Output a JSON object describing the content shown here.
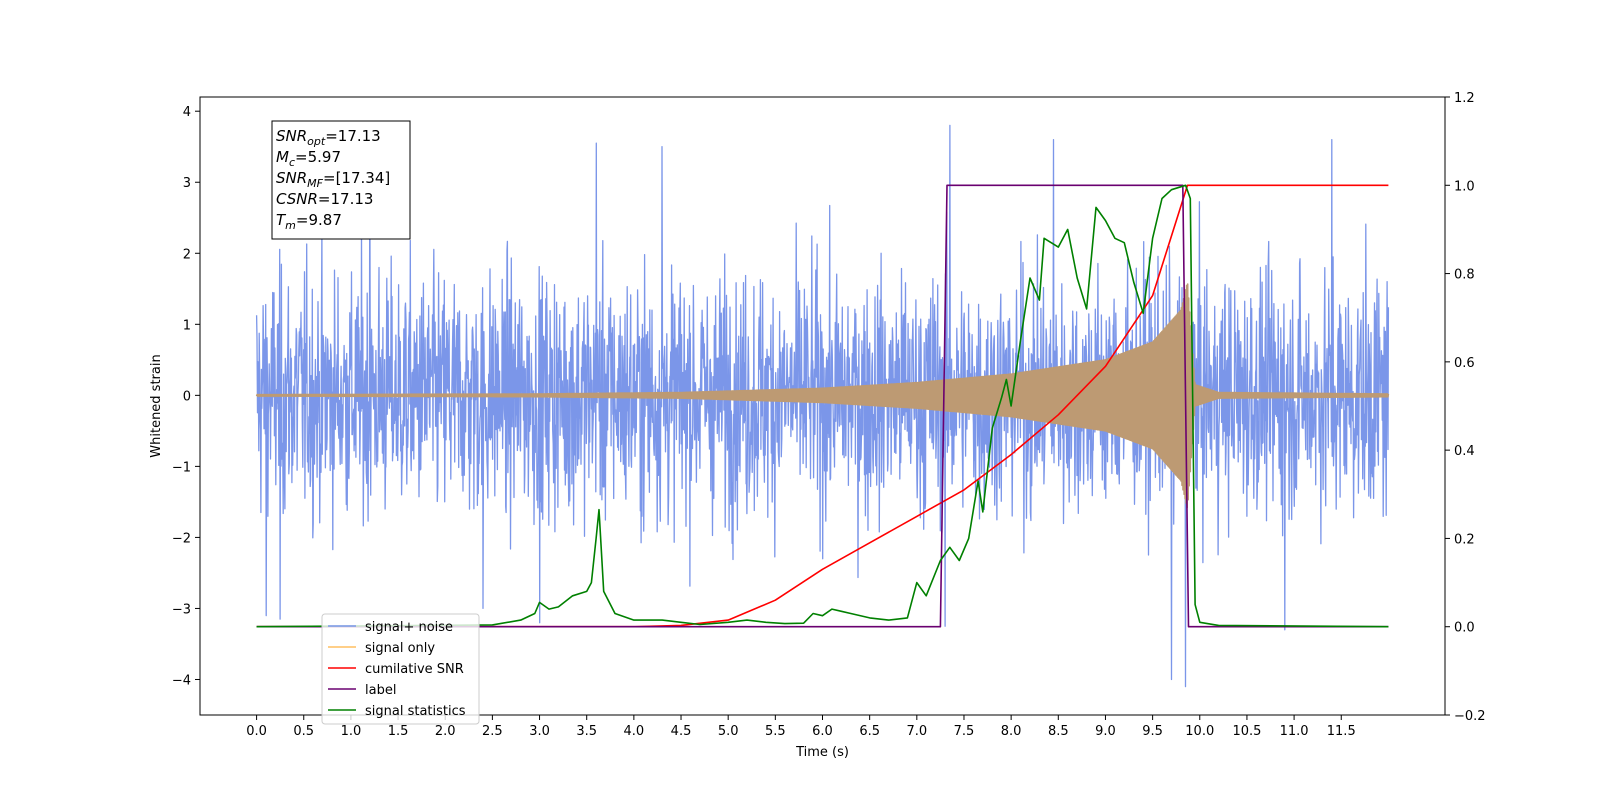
{
  "chart_data": {
    "type": "line",
    "xlabel": "Time (s)",
    "ylabel": "Whitened strain",
    "x_ticks": [
      "0.0",
      "0.5",
      "1.0",
      "1.5",
      "2.0",
      "2.5",
      "3.0",
      "3.5",
      "4.0",
      "4.5",
      "5.0",
      "5.5",
      "6.0",
      "6.5",
      "7.0",
      "7.5",
      "8.0",
      "8.5",
      "9.0",
      "9.5",
      "10.0",
      "10.5",
      "11.0",
      "11.5"
    ],
    "xlim": [
      -0.6,
      12.6
    ],
    "ylim_left": [
      -4.5,
      4.2
    ],
    "ylim_right": [
      -0.2,
      1.2
    ],
    "y_ticks_left": [
      "−4",
      "−3",
      "−2",
      "−1",
      "0",
      "1",
      "2",
      "3",
      "4"
    ],
    "y_ticks_right": [
      "−0.2",
      "0.0",
      "0.2",
      "0.4",
      "0.6",
      "0.8",
      "1.0",
      "1.2"
    ],
    "grid": false,
    "legend_position": "lower-left",
    "annotation": {
      "lines": [
        {
          "sym": "SNR",
          "sub": "opt",
          "value": "=17.13"
        },
        {
          "sym": "M",
          "sub": "c",
          "value": "=5.97"
        },
        {
          "sym": "SNR",
          "sub": "MF",
          "value": "=[17.34]"
        },
        {
          "sym": "CSNR",
          "sub": "",
          "value": "=17.13"
        },
        {
          "sym": "T",
          "sub": "m",
          "value": "=9.87"
        }
      ]
    },
    "series": [
      {
        "name": "signal+ noise",
        "color": "#7b96e9",
        "axis": "left",
        "x_range": [
          0.0,
          12.0
        ],
        "noise_std": 0.85,
        "spikes": [
          [
            0.1,
            -3.1
          ],
          [
            0.25,
            -3.15
          ],
          [
            1.2,
            3.5
          ],
          [
            2.4,
            -3.0
          ],
          [
            3.0,
            -3.2
          ],
          [
            3.6,
            3.55
          ],
          [
            4.3,
            3.5
          ],
          [
            7.3,
            -3.25
          ],
          [
            7.35,
            3.8
          ],
          [
            8.45,
            3.6
          ],
          [
            9.7,
            -4.0
          ],
          [
            9.85,
            -4.1
          ],
          [
            10.9,
            -3.3
          ],
          [
            10.9,
            3.7
          ],
          [
            11.4,
            3.6
          ]
        ]
      },
      {
        "name": "signal only",
        "color": "#bd9a73",
        "legend_color": "#ffbf60",
        "axis": "left",
        "x_range": [
          0.0,
          12.0
        ],
        "envelope": [
          [
            0,
            0.01
          ],
          [
            3.0,
            0.02
          ],
          [
            4.5,
            0.04
          ],
          [
            6.0,
            0.1
          ],
          [
            7.0,
            0.18
          ],
          [
            8.0,
            0.3
          ],
          [
            9.0,
            0.5
          ],
          [
            9.5,
            0.75
          ],
          [
            9.8,
            1.2
          ],
          [
            9.87,
            1.6
          ],
          [
            9.95,
            0.15
          ],
          [
            10.2,
            0.04
          ],
          [
            12.0,
            0.02
          ]
        ]
      },
      {
        "name": "cumilative SNR",
        "color": "#ff0000",
        "axis": "right",
        "points": [
          [
            0,
            0
          ],
          [
            4.0,
            0
          ],
          [
            4.5,
            0.003
          ],
          [
            5.0,
            0.015
          ],
          [
            5.5,
            0.06
          ],
          [
            6.0,
            0.13
          ],
          [
            6.5,
            0.19
          ],
          [
            7.0,
            0.25
          ],
          [
            7.5,
            0.31
          ],
          [
            8.0,
            0.39
          ],
          [
            8.5,
            0.48
          ],
          [
            9.0,
            0.59
          ],
          [
            9.5,
            0.75
          ],
          [
            9.87,
            1.0
          ],
          [
            12.0,
            1.0
          ]
        ]
      },
      {
        "name": "label",
        "color": "#6a0070",
        "axis": "right",
        "points": [
          [
            0,
            0
          ],
          [
            7.25,
            0
          ],
          [
            7.32,
            1.0
          ],
          [
            9.82,
            1.0
          ],
          [
            9.88,
            0
          ],
          [
            12.0,
            0
          ]
        ]
      },
      {
        "name": "signal statistics",
        "color": "#008000",
        "axis": "right",
        "points": [
          [
            0,
            0
          ],
          [
            2.5,
            0.004
          ],
          [
            2.8,
            0.015
          ],
          [
            2.95,
            0.03
          ],
          [
            3.0,
            0.055
          ],
          [
            3.1,
            0.04
          ],
          [
            3.2,
            0.045
          ],
          [
            3.35,
            0.07
          ],
          [
            3.5,
            0.08
          ],
          [
            3.55,
            0.1
          ],
          [
            3.6,
            0.2
          ],
          [
            3.63,
            0.265
          ],
          [
            3.68,
            0.08
          ],
          [
            3.8,
            0.03
          ],
          [
            4.0,
            0.015
          ],
          [
            4.3,
            0.015
          ],
          [
            4.5,
            0.01
          ],
          [
            4.7,
            0.005
          ],
          [
            5.0,
            0.01
          ],
          [
            5.2,
            0.015
          ],
          [
            5.4,
            0.01
          ],
          [
            5.6,
            0.007
          ],
          [
            5.8,
            0.008
          ],
          [
            5.9,
            0.03
          ],
          [
            6.0,
            0.025
          ],
          [
            6.1,
            0.04
          ],
          [
            6.2,
            0.035
          ],
          [
            6.3,
            0.03
          ],
          [
            6.5,
            0.02
          ],
          [
            6.7,
            0.015
          ],
          [
            6.9,
            0.02
          ],
          [
            7.0,
            0.1
          ],
          [
            7.1,
            0.07
          ],
          [
            7.25,
            0.15
          ],
          [
            7.35,
            0.18
          ],
          [
            7.45,
            0.15
          ],
          [
            7.55,
            0.2
          ],
          [
            7.65,
            0.33
          ],
          [
            7.7,
            0.26
          ],
          [
            7.8,
            0.45
          ],
          [
            7.9,
            0.52
          ],
          [
            7.95,
            0.56
          ],
          [
            8.0,
            0.5
          ],
          [
            8.1,
            0.65
          ],
          [
            8.2,
            0.79
          ],
          [
            8.3,
            0.74
          ],
          [
            8.35,
            0.88
          ],
          [
            8.5,
            0.86
          ],
          [
            8.6,
            0.9
          ],
          [
            8.7,
            0.79
          ],
          [
            8.8,
            0.72
          ],
          [
            8.9,
            0.95
          ],
          [
            9.0,
            0.92
          ],
          [
            9.1,
            0.88
          ],
          [
            9.2,
            0.87
          ],
          [
            9.3,
            0.78
          ],
          [
            9.4,
            0.71
          ],
          [
            9.5,
            0.88
          ],
          [
            9.6,
            0.97
          ],
          [
            9.7,
            0.99
          ],
          [
            9.85,
            1.0
          ],
          [
            9.9,
            0.97
          ],
          [
            9.95,
            0.05
          ],
          [
            10.0,
            0.01
          ],
          [
            10.2,
            0.003
          ],
          [
            12.0,
            0.0
          ]
        ]
      }
    ]
  }
}
